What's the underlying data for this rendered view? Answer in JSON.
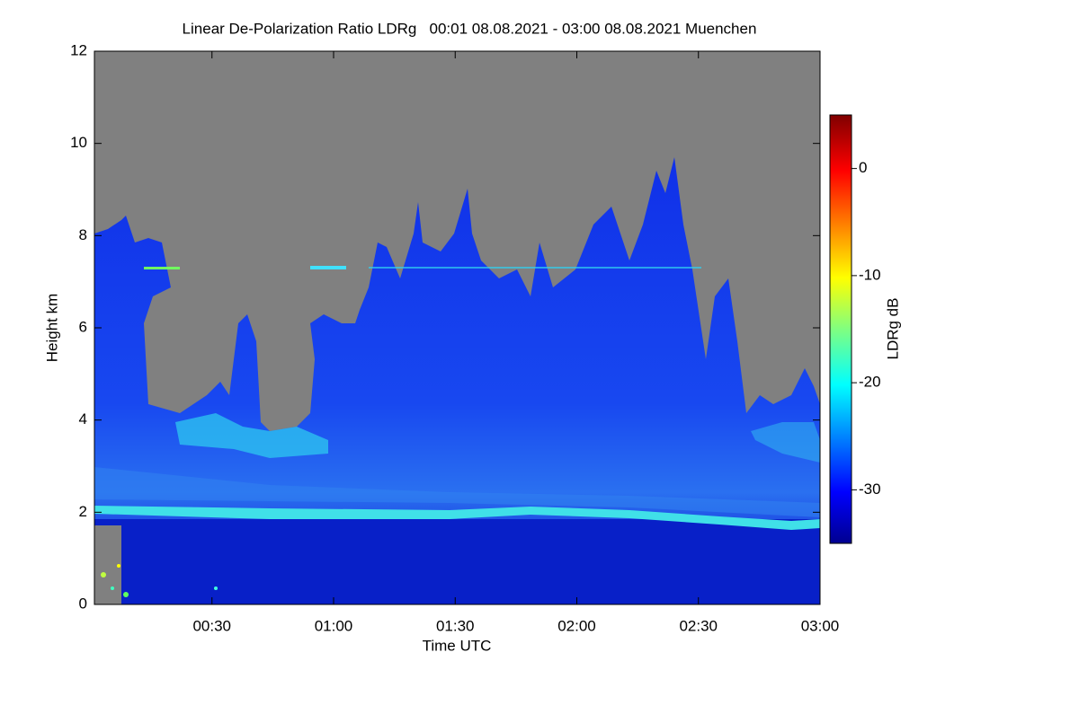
{
  "chart_data": {
    "type": "heatmap",
    "title": "Linear De-Polarization Ratio LDRg   00:01 08.08.2021 - 03:00 08.08.2021 Muenchen",
    "x_label": "Time UTC",
    "y_label": "Height km",
    "xlim": [
      1,
      180
    ],
    "xticks": [
      {
        "value": 30,
        "label": "00:30"
      },
      {
        "value": 60,
        "label": "01:00"
      },
      {
        "value": 90,
        "label": "01:30"
      },
      {
        "value": 120,
        "label": "02:00"
      },
      {
        "value": 150,
        "label": "02:30"
      },
      {
        "value": 180,
        "label": "03:00"
      }
    ],
    "ylim": [
      0,
      12
    ],
    "yticks": [
      0,
      2,
      4,
      6,
      8,
      10,
      12
    ],
    "colorbar": {
      "label": "LDRg dB",
      "lim": [
        -35,
        5
      ],
      "ticks": [
        0,
        -10,
        -20,
        -30
      ]
    }
  }
}
